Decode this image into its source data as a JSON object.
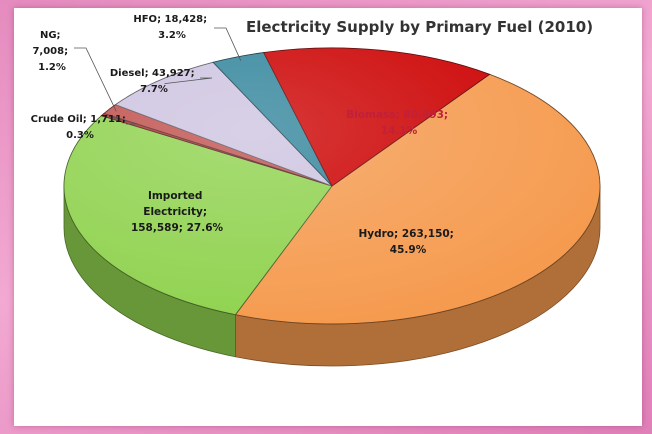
{
  "chart_data": {
    "type": "pie",
    "title": "Electricity Supply by Primary Fuel (2010)",
    "slices": [
      {
        "name": "Hydro",
        "value": 263150,
        "percent": 45.9,
        "value_text": "263,150;",
        "percent_text": "45.9%",
        "color": "#f59a4e"
      },
      {
        "name": "Imported Electricity",
        "value": 158589,
        "percent": 27.6,
        "value_text": "158,589; 27.6%",
        "percent_text": "",
        "color": "#8fd24e"
      },
      {
        "name": "Crude Oil",
        "value": 1711,
        "percent": 0.3,
        "value_text": "1,711;",
        "percent_text": "0.3%",
        "color": "#b03030"
      },
      {
        "name": "NG",
        "value": 7008,
        "percent": 1.2,
        "value_text": "7,008;",
        "percent_text": "1.2%",
        "color": "#c0504d"
      },
      {
        "name": "Diesel",
        "value": 43927,
        "percent": 7.7,
        "value_text": "43,927;",
        "percent_text": "7.7%",
        "color": "#cdc3e0"
      },
      {
        "name": "HFO",
        "value": 18428,
        "percent": 3.2,
        "value_text": "18,428;",
        "percent_text": "3.2%",
        "color": "#31849b"
      },
      {
        "name": "Biomass",
        "value": 80893,
        "percent": 14.1,
        "value_text": "80,893;",
        "percent_text": "14.1%",
        "color": "#cc0000"
      }
    ]
  }
}
